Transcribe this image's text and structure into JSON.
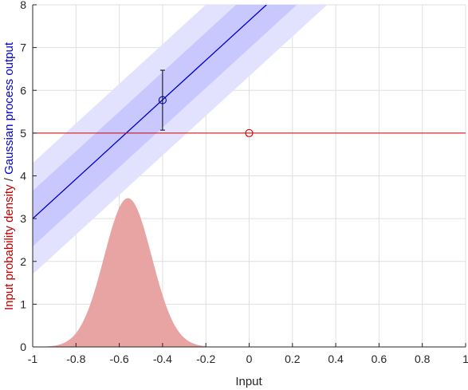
{
  "chart_data": {
    "type": "line",
    "xlabel": "Input",
    "ylabel_parts": [
      {
        "text": "Input probability density",
        "color": "#c00000"
      },
      {
        "text": " / ",
        "color": "#262626"
      },
      {
        "text": "Gaussian process output",
        "color": "#0000cc"
      }
    ],
    "xlim": [
      -1,
      1
    ],
    "ylim": [
      0,
      8
    ],
    "x_ticks": [
      -1,
      -0.8,
      -0.6,
      -0.4,
      -0.2,
      0,
      0.2,
      0.4,
      0.6,
      0.8,
      1
    ],
    "x_tick_labels": [
      "-1",
      "-0.8",
      "-0.6",
      "-0.4",
      "-0.2",
      "0",
      "0.2",
      "0.4",
      "0.6",
      "0.8",
      "1"
    ],
    "y_ticks": [
      0,
      1,
      2,
      3,
      4,
      5,
      6,
      7,
      8
    ],
    "y_tick_labels": [
      "0",
      "1",
      "2",
      "3",
      "4",
      "5",
      "6",
      "7",
      "8"
    ],
    "grid": true,
    "series": [
      {
        "kind": "line",
        "color": "#0000cc",
        "x": [
          -1,
          0.08
        ],
        "y": [
          3.0,
          8.0
        ]
      },
      {
        "kind": "band",
        "color": "#c8c8ff",
        "x": [
          -1,
          1
        ],
        "y_center_at_x": [
          3.0,
          12.26
        ],
        "half_width": 0.65
      },
      {
        "kind": "band",
        "color": "#e2e2ff",
        "x": [
          -1,
          1
        ],
        "y_center_at_x": [
          3.0,
          12.26
        ],
        "half_width": 1.3
      },
      {
        "kind": "hline",
        "color": "#cc0000",
        "y": 5.0
      },
      {
        "kind": "marker",
        "shape": "circle",
        "color": "#0000cc",
        "x": -0.4,
        "y": 5.77
      },
      {
        "kind": "errorbar",
        "color": "#000000",
        "x": -0.4,
        "y_low": 5.07,
        "y_high": 6.47
      },
      {
        "kind": "marker",
        "shape": "circle",
        "color": "#cc0000",
        "x": 0,
        "y": 5.0
      },
      {
        "kind": "density",
        "color": "#e8a3a3",
        "mean": -0.56,
        "std": 0.11,
        "peak": 3.48,
        "x_range": [
          -0.98,
          -0.2
        ]
      }
    ]
  }
}
